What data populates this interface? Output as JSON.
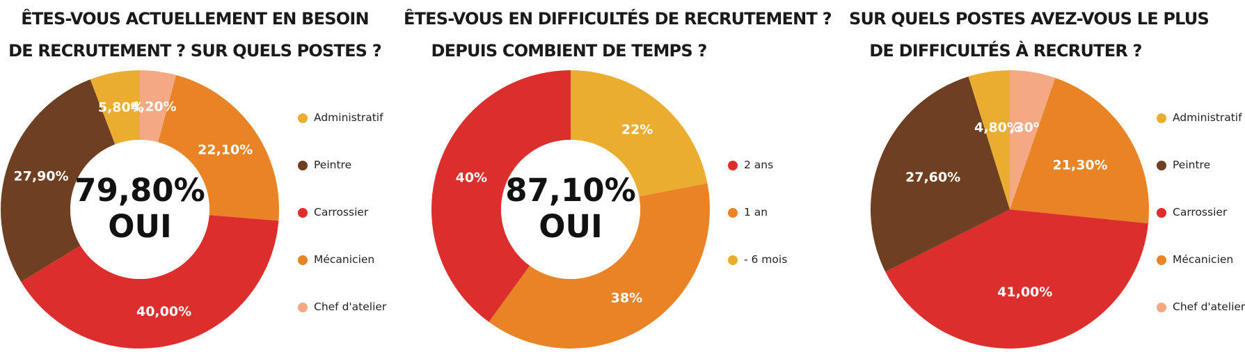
{
  "chart_data": [
    {
      "type": "pie",
      "donut": true,
      "title": [
        "ÊTES-VOUS ACTUELLEMENT EN BESOIN",
        "DE RECRUTEMENT ? SUR QUELS POSTES ?"
      ],
      "center_value": "79,80%",
      "center_label": "OUI",
      "legend_position": "right",
      "slices": [
        {
          "label": "Chef d'atelier",
          "value": 4.2,
          "display": "4,20%",
          "color": "#F4A983"
        },
        {
          "label": "Mécanicien",
          "value": 22.1,
          "display": "22,10%",
          "color": "#E88326"
        },
        {
          "label": "Carrossier",
          "value": 40.0,
          "display": "40,00%",
          "color": "#DC2E2D"
        },
        {
          "label": "Peintre",
          "value": 27.9,
          "display": "27,90%",
          "color": "#6E3F21"
        },
        {
          "label": "Administratif",
          "value": 5.8,
          "display": "5,80%",
          "color": "#EBAD2F"
        }
      ],
      "legend": [
        "Administratif",
        "Peintre",
        "Carrossier",
        "Mécanicien",
        "Chef d'atelier"
      ]
    },
    {
      "type": "pie",
      "donut": true,
      "title": [
        "ÊTES-VOUS EN DIFFICULTÉS DE RECRUTEMENT ?",
        "DEPUIS COMBIENT DE TEMPS ?"
      ],
      "center_value": "87,10%",
      "center_label": "OUI",
      "legend_position": "right",
      "slices": [
        {
          "label": "- 6 mois",
          "value": 22,
          "display": "22%",
          "color": "#EBAD2F"
        },
        {
          "label": "1 an",
          "value": 38,
          "display": "38%",
          "color": "#E88326"
        },
        {
          "label": "2 ans",
          "value": 40,
          "display": "40%",
          "color": "#DC2E2D"
        }
      ],
      "legend": [
        "2 ans",
        "1 an",
        "- 6 mois"
      ]
    },
    {
      "type": "pie",
      "donut": false,
      "title": [
        "SUR QUELS POSTES AVEZ-VOUS LE PLUS",
        "DE DIFFICULTÉS À RECRUTER ?"
      ],
      "legend_position": "right",
      "slices": [
        {
          "label": "Chef d'atelier",
          "value": 5.3,
          "display": "5,30%",
          "color": "#F4A983"
        },
        {
          "label": "Mécanicien",
          "value": 21.3,
          "display": "21,30%",
          "color": "#E88326"
        },
        {
          "label": "Carrossier",
          "value": 41.0,
          "display": "41,00%",
          "color": "#DC2E2D"
        },
        {
          "label": "Peintre",
          "value": 27.6,
          "display": "27,60%",
          "color": "#6E3F21"
        },
        {
          "label": "Administratif",
          "value": 4.8,
          "display": "4,80%",
          "color": "#EBAD2F"
        }
      ],
      "legend": [
        "Administratif",
        "Peintre",
        "Carrossier",
        "Mécanicien",
        "Chef d'atelier"
      ]
    }
  ],
  "legend_colors": {
    "Administratif": "#EBAD2F",
    "Peintre": "#6E3F21",
    "Carrossier": "#DC2E2D",
    "Mécanicien": "#E88326",
    "Chef d'atelier": "#F4A983",
    "2 ans": "#DC2E2D",
    "1 an": "#E88326",
    "- 6 mois": "#EBAD2F"
  }
}
